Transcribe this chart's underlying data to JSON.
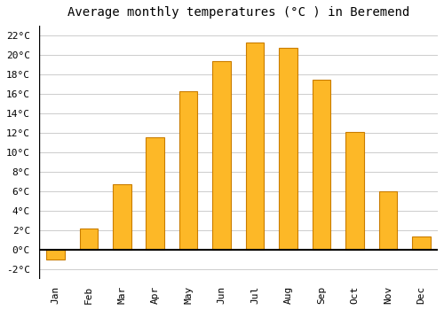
{
  "title": "Average monthly temperatures (°C ) in Beremend",
  "months": [
    "Jan",
    "Feb",
    "Mar",
    "Apr",
    "May",
    "Jun",
    "Jul",
    "Aug",
    "Sep",
    "Oct",
    "Nov",
    "Dec"
  ],
  "values": [
    -1.0,
    2.2,
    6.7,
    11.6,
    16.3,
    19.4,
    21.3,
    20.7,
    17.5,
    12.1,
    6.0,
    1.4
  ],
  "bar_color": "#FDB827",
  "bar_edge_color": "#C97D00",
  "ylim": [
    -3,
    23
  ],
  "yticks": [
    -2,
    0,
    2,
    4,
    6,
    8,
    10,
    12,
    14,
    16,
    18,
    20,
    22
  ],
  "background_color": "#ffffff",
  "plot_bg_color": "#f5f5f5",
  "grid_color": "#cccccc",
  "title_fontsize": 10,
  "tick_fontsize": 8,
  "figsize": [
    5.0,
    3.5
  ],
  "dpi": 100,
  "bar_width": 0.55
}
